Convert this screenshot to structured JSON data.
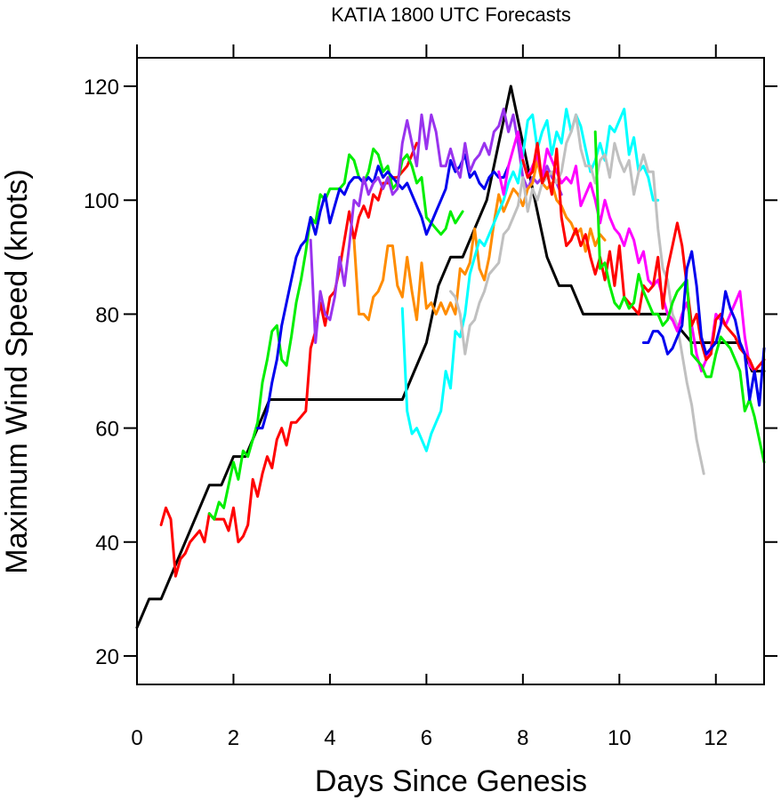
{
  "chart_data": {
    "type": "line",
    "title": "KATIA 1800 UTC Forecasts",
    "xlabel": "Days Since Genesis",
    "ylabel": "Maximum Wind Speed (knots)",
    "xlim": [
      0,
      13
    ],
    "ylim": [
      15,
      125
    ],
    "xticks": [
      0,
      2,
      4,
      6,
      8,
      10,
      12
    ],
    "yticks": [
      20,
      40,
      60,
      80,
      100,
      120
    ],
    "grid": false,
    "legend": "none",
    "series": [
      {
        "color": "#000000",
        "x": [
          0,
          0.25,
          0.5,
          0.75,
          1.0,
          1.25,
          1.5,
          1.75,
          2.0,
          2.25,
          2.5,
          2.75,
          3.0,
          3.5,
          4.0,
          4.5,
          5.0,
          5.5,
          5.75,
          6.0,
          6.25,
          6.5,
          6.75,
          7.0,
          7.25,
          7.5,
          7.75,
          8.0,
          8.25,
          8.5,
          8.75,
          9.0,
          9.25,
          9.5,
          10.0,
          10.5,
          11.0,
          11.5,
          12.0,
          12.5,
          12.75,
          13.0
        ],
        "y": [
          25,
          30,
          30,
          35,
          40,
          45,
          50,
          50,
          55,
          55,
          60,
          65,
          65,
          65,
          65,
          65,
          65,
          65,
          70,
          75,
          85,
          90,
          90,
          95,
          100,
          110,
          120,
          110,
          100,
          90,
          85,
          85,
          80,
          80,
          80,
          80,
          80,
          75,
          75,
          75,
          70,
          70
        ]
      },
      {
        "color": "#ff0000",
        "x": [
          0.5,
          0.6,
          0.7,
          0.8,
          0.9,
          1.0,
          1.1,
          1.2,
          1.3,
          1.4,
          1.5,
          1.6,
          1.7,
          1.8,
          1.9,
          2.0,
          2.1,
          2.2,
          2.3,
          2.4,
          2.5,
          2.6,
          2.7,
          2.8,
          2.9,
          3.0,
          3.1,
          3.2,
          3.3,
          3.4,
          3.5,
          3.6,
          3.7,
          3.8,
          3.9,
          4.0,
          4.1,
          4.2,
          4.3,
          4.4,
          4.5,
          4.6,
          4.7,
          4.8,
          4.9,
          5.0,
          5.1,
          5.2,
          5.3,
          5.4,
          5.5,
          5.6,
          5.7,
          5.8
        ],
        "y": [
          43,
          46,
          44,
          34,
          37,
          38,
          40,
          41,
          42,
          40,
          45,
          44,
          44,
          44,
          42,
          46,
          40,
          41,
          43,
          51,
          48,
          52,
          55,
          53,
          58,
          60,
          57,
          61,
          61,
          62,
          63,
          74,
          77,
          82,
          78,
          83,
          84,
          88,
          93,
          98,
          93,
          97,
          99,
          97,
          101,
          100,
          103,
          103,
          104,
          104,
          105,
          106,
          108,
          110
        ]
      },
      {
        "color": "#00ee00",
        "x": [
          1.5,
          1.6,
          1.7,
          1.8,
          1.9,
          2.0,
          2.1,
          2.2,
          2.3,
          2.4,
          2.5,
          2.6,
          2.7,
          2.8,
          2.9,
          3.0,
          3.1,
          3.2,
          3.3,
          3.4,
          3.5,
          3.6,
          3.7,
          3.8,
          3.9,
          4.0,
          4.1,
          4.2,
          4.3,
          4.4,
          4.5,
          4.6,
          4.7,
          4.8,
          4.9,
          5.0,
          5.1,
          5.2,
          5.3,
          5.4,
          5.5,
          5.6,
          5.7,
          5.8,
          5.9,
          6.0,
          6.1,
          6.2,
          6.3,
          6.4,
          6.5,
          6.6,
          6.75
        ],
        "y": [
          45,
          44,
          47,
          46,
          50,
          54,
          51,
          56,
          55,
          58,
          61,
          68,
          72,
          77,
          78,
          72,
          71,
          76,
          82,
          86,
          91,
          97,
          96,
          101,
          100,
          102,
          102,
          102,
          103,
          108,
          107,
          104,
          103,
          105,
          109,
          108,
          105,
          106,
          102,
          103,
          107,
          108,
          106,
          103,
          104,
          97,
          96,
          95,
          94,
          95,
          98,
          96,
          98
        ]
      },
      {
        "color": "#0000ee",
        "x": [
          2.5,
          2.6,
          2.7,
          2.8,
          2.9,
          3.0,
          3.1,
          3.2,
          3.3,
          3.4,
          3.5,
          3.6,
          3.7,
          3.8,
          3.9,
          4.0,
          4.1,
          4.2,
          4.3,
          4.4,
          4.5,
          4.6,
          4.7,
          4.8,
          4.9,
          5.0,
          5.1,
          5.2,
          5.3,
          5.4,
          5.5,
          5.6,
          5.7,
          5.8,
          5.9,
          6.0,
          6.1,
          6.2,
          6.3,
          6.4,
          6.5,
          6.6,
          6.7,
          6.8,
          6.9,
          7.0,
          7.1,
          7.2,
          7.3,
          7.4,
          7.5,
          7.6,
          7.7
        ],
        "y": [
          60,
          60,
          63,
          68,
          72,
          78,
          82,
          86,
          90,
          92,
          93,
          97,
          94,
          98,
          101,
          96,
          99,
          102,
          101,
          103,
          104,
          104,
          103,
          104,
          103,
          106,
          104,
          105,
          104,
          103,
          102,
          103,
          101,
          99,
          97,
          94,
          96,
          98,
          100,
          102,
          107,
          105,
          106,
          108,
          104,
          105,
          103,
          102,
          104,
          105,
          104,
          104,
          106
        ]
      },
      {
        "color": "#9933ee",
        "x": [
          3.6,
          3.7,
          3.8,
          3.9,
          4.0,
          4.1,
          4.2,
          4.3,
          4.4,
          4.5,
          4.6,
          4.7,
          4.8,
          4.9,
          5.0,
          5.1,
          5.2,
          5.3,
          5.4,
          5.5,
          5.6,
          5.7,
          5.8,
          5.9,
          6.0,
          6.1,
          6.2,
          6.3,
          6.4,
          6.5,
          6.6,
          6.7,
          6.8,
          6.9,
          7.0,
          7.1,
          7.2,
          7.3,
          7.4,
          7.5,
          7.6,
          7.7,
          7.8,
          7.9,
          8.0,
          8.1,
          8.2,
          8.3,
          8.4,
          8.5,
          8.6,
          8.7,
          8.8
        ],
        "y": [
          93,
          75,
          84,
          80,
          79,
          83,
          90,
          85,
          92,
          100,
          99,
          104,
          101,
          103,
          104,
          102,
          104,
          101,
          102,
          110,
          114,
          110,
          106,
          115,
          109,
          115,
          112,
          106,
          106,
          109,
          106,
          104,
          110,
          105,
          107,
          108,
          110,
          108,
          112,
          113,
          116,
          112,
          115,
          110,
          104,
          102,
          104,
          103,
          104,
          106,
          104,
          103,
          101
        ]
      },
      {
        "color": "#ff8c00",
        "x": [
          4.5,
          4.6,
          4.7,
          4.8,
          4.9,
          5.0,
          5.1,
          5.2,
          5.3,
          5.4,
          5.5,
          5.6,
          5.7,
          5.8,
          5.9,
          6.0,
          6.1,
          6.2,
          6.3,
          6.4,
          6.5,
          6.6,
          6.7,
          6.8,
          6.9,
          7.0,
          7.1,
          7.2,
          7.3,
          7.4,
          7.5,
          7.6,
          7.7,
          7.8,
          7.9,
          8.0,
          8.1,
          8.2,
          8.3,
          8.4,
          8.5,
          8.6,
          8.7,
          8.8,
          8.9,
          9.0,
          9.1,
          9.2,
          9.3,
          9.4,
          9.5,
          9.6,
          9.7
        ],
        "y": [
          93,
          80,
          80,
          79,
          83,
          84,
          86,
          92,
          92,
          85,
          83,
          90,
          84,
          79,
          89,
          81,
          82,
          80,
          82,
          80,
          82,
          80,
          88,
          87,
          89,
          95,
          88,
          86,
          90,
          96,
          101,
          98,
          100,
          102,
          101,
          99,
          102,
          103,
          107,
          103,
          102,
          103,
          100,
          99,
          97,
          96,
          94,
          95,
          91,
          95,
          92,
          94,
          93
        ]
      },
      {
        "color": "#00ffff",
        "x": [
          5.5,
          5.6,
          5.7,
          5.8,
          5.9,
          6.0,
          6.1,
          6.2,
          6.3,
          6.4,
          6.5,
          6.6,
          6.7,
          6.8,
          6.9,
          7.0,
          7.1,
          7.2,
          7.3,
          7.4,
          7.5,
          7.6,
          7.7,
          7.8,
          7.9,
          8.0,
          8.1,
          8.2,
          8.3,
          8.4,
          8.5,
          8.6,
          8.7,
          8.8,
          8.9,
          9.0,
          9.1,
          9.2,
          9.3,
          9.4,
          9.5,
          9.6,
          9.7,
          9.8,
          9.9,
          10.0,
          10.1,
          10.2,
          10.3,
          10.4,
          10.5,
          10.6,
          10.7,
          10.8
        ],
        "y": [
          81,
          63,
          59,
          60,
          58,
          56,
          59,
          61,
          63,
          70,
          67,
          77,
          76,
          80,
          87,
          90,
          93,
          92,
          94,
          96,
          98,
          100,
          103,
          105,
          103,
          108,
          114,
          115,
          109,
          112,
          114,
          108,
          112,
          110,
          116,
          112,
          115,
          113,
          109,
          105,
          107,
          110,
          107,
          113,
          112,
          114,
          116,
          108,
          111,
          105,
          106,
          104,
          100,
          100
        ]
      },
      {
        "color": "#c0c0c0",
        "x": [
          6.5,
          6.6,
          6.7,
          6.8,
          6.9,
          7.0,
          7.1,
          7.2,
          7.3,
          7.4,
          7.5,
          7.6,
          7.7,
          7.8,
          7.9,
          8.0,
          8.1,
          8.2,
          8.3,
          8.4,
          8.5,
          8.6,
          8.7,
          8.8,
          8.9,
          9.0,
          9.1,
          9.2,
          9.3,
          9.4,
          9.5,
          9.6,
          9.7,
          9.8,
          9.9,
          10.0,
          10.1,
          10.2,
          10.3,
          10.4,
          10.5,
          10.6,
          10.7,
          10.8,
          10.9,
          11.0,
          11.1,
          11.2,
          11.3,
          11.4,
          11.5,
          11.6,
          11.75
        ],
        "y": [
          84,
          83,
          80,
          73,
          78,
          79,
          82,
          84,
          87,
          88,
          89,
          94,
          95,
          97,
          99,
          104,
          98,
          102,
          100,
          103,
          104,
          105,
          103,
          105,
          110,
          112,
          115,
          109,
          106,
          106,
          103,
          107,
          108,
          104,
          110,
          107,
          105,
          107,
          101,
          105,
          108,
          105,
          105,
          95,
          88,
          86,
          80,
          78,
          73,
          68,
          64,
          58,
          52
        ]
      },
      {
        "color": "#ff00ff",
        "x": [
          7.5,
          7.6,
          7.7,
          7.8,
          7.9,
          8.0,
          8.1,
          8.2,
          8.3,
          8.4,
          8.5,
          8.6,
          8.7,
          8.8,
          8.9,
          9.0,
          9.1,
          9.2,
          9.3,
          9.4,
          9.5,
          9.6,
          9.7,
          9.8,
          9.9,
          10.0,
          10.1,
          10.2,
          10.3,
          10.4,
          10.5,
          10.6,
          10.7,
          10.8,
          10.9,
          11.0,
          11.1,
          11.2,
          11.3,
          11.4,
          11.5,
          11.6,
          11.7,
          11.8,
          11.9,
          12.0,
          12.1,
          12.2,
          12.3,
          12.4,
          12.5,
          12.6,
          12.7,
          12.8
        ],
        "y": [
          105,
          101,
          106,
          109,
          112,
          107,
          104,
          106,
          108,
          104,
          109,
          107,
          105,
          103,
          104,
          103,
          106,
          99,
          101,
          103,
          100,
          96,
          100,
          97,
          95,
          94,
          92,
          95,
          93,
          89,
          91,
          86,
          85,
          86,
          83,
          80,
          79,
          77,
          80,
          82,
          78,
          73,
          70,
          72,
          74,
          80,
          79,
          78,
          80,
          82,
          84,
          76,
          71,
          70
        ]
      },
      {
        "color": "#ff0000",
        "x": [
          8.0,
          8.1,
          8.2,
          8.3,
          8.4,
          8.5,
          8.6,
          8.7,
          8.8,
          8.9,
          9.0,
          9.1,
          9.2,
          9.3,
          9.4,
          9.5,
          9.6,
          9.7,
          9.8,
          9.9,
          10.0,
          10.1,
          10.2,
          10.3,
          10.4,
          10.5,
          10.6,
          10.7,
          10.8,
          10.9,
          11.0,
          11.1,
          11.2,
          11.3,
          11.4,
          11.5,
          11.6,
          11.7,
          11.8,
          11.9,
          12.0,
          12.1,
          12.2,
          12.3,
          12.4,
          12.5,
          12.6,
          12.7,
          12.8,
          12.9,
          13.0
        ],
        "y": [
          107,
          104,
          105,
          110,
          103,
          105,
          101,
          109,
          97,
          92,
          93,
          95,
          92,
          94,
          90,
          87,
          90,
          86,
          91,
          85,
          92,
          83,
          82,
          81,
          80,
          85,
          84,
          85,
          90,
          81,
          88,
          92,
          96,
          92,
          85,
          78,
          80,
          75,
          72,
          73,
          79,
          80,
          78,
          77,
          76,
          74,
          73,
          72,
          70,
          71,
          72
        ]
      },
      {
        "color": "#00ee00",
        "x": [
          9.5,
          9.6,
          9.7,
          9.8,
          9.9,
          10.0,
          10.1,
          10.2,
          10.3,
          10.4,
          10.5,
          10.6,
          10.7,
          10.8,
          10.9,
          11.0,
          11.1,
          11.2,
          11.3,
          11.4,
          11.5,
          11.6,
          11.7,
          11.8,
          11.9,
          12.0,
          12.1,
          12.2,
          12.3,
          12.4,
          12.5,
          12.6,
          12.7,
          12.8,
          12.9,
          13.0
        ],
        "y": [
          112,
          88,
          89,
          85,
          82,
          81,
          83,
          81,
          82,
          87,
          84,
          82,
          80,
          80,
          78,
          79,
          82,
          84,
          85,
          86,
          73,
          72,
          71,
          69,
          69,
          73,
          76,
          75,
          74,
          72,
          70,
          63,
          65,
          62,
          58,
          54
        ]
      },
      {
        "color": "#0000ee",
        "x": [
          10.5,
          10.6,
          10.7,
          10.8,
          10.9,
          11.0,
          11.1,
          11.2,
          11.3,
          11.4,
          11.5,
          11.6,
          11.7,
          11.8,
          11.9,
          12.0,
          12.1,
          12.2,
          12.3,
          12.4,
          12.5,
          12.6,
          12.7,
          12.8,
          12.9,
          13.0
        ],
        "y": [
          75,
          75,
          77,
          77,
          76,
          73,
          74,
          76,
          78,
          88,
          91,
          85,
          76,
          73,
          74,
          75,
          78,
          84,
          81,
          79,
          75,
          73,
          65,
          70,
          64,
          74
        ]
      }
    ]
  }
}
